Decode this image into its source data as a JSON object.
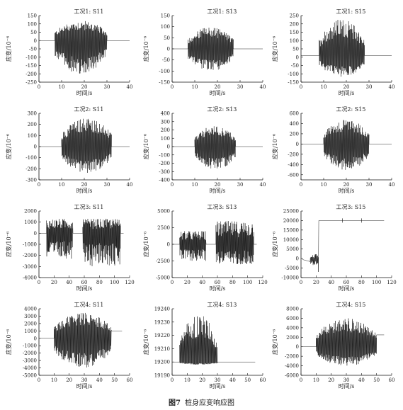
{
  "figure": {
    "label": "图7",
    "caption": "桩身应变响应图"
  },
  "chart_data": [
    {
      "type": "line",
      "title": "工况1: S11",
      "xlabel": "时间/s",
      "ylabel": "应变/10⁻⁶",
      "xlim": [
        0,
        40
      ],
      "ylim": [
        -250,
        150
      ],
      "xticks": [
        "0",
        "10",
        "20",
        "30",
        "40"
      ],
      "yticks": [
        "-250",
        "-200",
        "-150",
        "-100",
        "-50",
        "0",
        "50",
        "100",
        "150"
      ],
      "baseline": 0,
      "envelope": {
        "start": 7,
        "end": 30,
        "max": 120,
        "min": -200,
        "freq": 0.8
      }
    },
    {
      "type": "line",
      "title": "工况1: S13",
      "xlabel": "时间/s",
      "ylabel": "应变/10⁻⁶",
      "xlim": [
        0,
        40
      ],
      "ylim": [
        -150,
        150
      ],
      "xticks": [
        "0",
        "10",
        "20",
        "30",
        "40"
      ],
      "yticks": [
        "-150",
        "-100",
        "-50",
        "0",
        "50",
        "100",
        "150"
      ],
      "baseline": 0,
      "envelope": {
        "start": 7,
        "end": 27,
        "max": 100,
        "min": -100,
        "freq": 0.8
      }
    },
    {
      "type": "line",
      "title": "工况1: S15",
      "xlabel": "时间/s",
      "ylabel": "应变/10⁻⁶",
      "xlim": [
        0,
        40
      ],
      "ylim": [
        -150,
        250
      ],
      "xticks": [
        "0",
        "10",
        "20",
        "30",
        "40"
      ],
      "yticks": [
        "-150",
        "-100",
        "-50",
        "0",
        "50",
        "100",
        "150",
        "200",
        "250"
      ],
      "baseline": 10,
      "envelope": {
        "start": 8,
        "end": 28,
        "max": 230,
        "min": -120,
        "freq": 0.8
      }
    },
    {
      "type": "line",
      "title": "工况2: S11",
      "xlabel": "时间/s",
      "ylabel": "应变/10⁻⁶",
      "xlim": [
        0,
        40
      ],
      "ylim": [
        -300,
        300
      ],
      "xticks": [
        "0",
        "10",
        "20",
        "30",
        "40"
      ],
      "yticks": [
        "-300",
        "-200",
        "-100",
        "0",
        "100",
        "200",
        "300"
      ],
      "baseline": 0,
      "envelope": {
        "start": 10,
        "end": 32,
        "max": 260,
        "min": -240,
        "freq": 2.5
      }
    },
    {
      "type": "line",
      "title": "工况2: S13",
      "xlabel": "时间/s",
      "ylabel": "应变/10⁻⁶",
      "xlim": [
        0,
        40
      ],
      "ylim": [
        -400,
        400
      ],
      "xticks": [
        "0",
        "10",
        "20",
        "30",
        "40"
      ],
      "yticks": [
        "-400",
        "-300",
        "-200",
        "-100",
        "0",
        "100",
        "200",
        "300",
        "400"
      ],
      "baseline": 0,
      "envelope": {
        "start": 10,
        "end": 28,
        "max": 250,
        "min": -280,
        "freq": 2.5
      }
    },
    {
      "type": "line",
      "title": "工况2: S15",
      "xlabel": "时间/s",
      "ylabel": "应变/10⁻⁶",
      "xlim": [
        0,
        40
      ],
      "ylim": [
        -700,
        600
      ],
      "xticks": [
        "0",
        "10",
        "20",
        "30",
        "40"
      ],
      "yticks": [
        "-600",
        "-400",
        "-200",
        "0",
        "200",
        "400",
        "600"
      ],
      "baseline": 0,
      "envelope": {
        "start": 10,
        "end": 30,
        "max": 480,
        "min": -520,
        "freq": 2.5
      }
    },
    {
      "type": "line",
      "title": "工况3: S11",
      "xlabel": "时间/s",
      "ylabel": "应变/10⁻⁶",
      "xlim": [
        0,
        120
      ],
      "ylim": [
        -4000,
        2000
      ],
      "xticks": [
        "0",
        "20",
        "40",
        "60",
        "80",
        "100",
        "120"
      ],
      "yticks": [
        "-4000",
        "-3000",
        "-2000",
        "-1000",
        "0",
        "1000",
        "2000"
      ],
      "baseline": 0,
      "bursts": [
        {
          "start": 10,
          "end": 45,
          "max": 1300,
          "min": -2300
        },
        {
          "start": 58,
          "end": 108,
          "max": 1300,
          "min": -3000
        }
      ]
    },
    {
      "type": "line",
      "title": "工况3: S13",
      "xlabel": "时间/s",
      "ylabel": "应变/10⁻⁶",
      "xlim": [
        0,
        120
      ],
      "ylim": [
        -5000,
        5000
      ],
      "xticks": [
        "0",
        "20",
        "40",
        "60",
        "80",
        "100",
        "120"
      ],
      "yticks": [
        "-5000",
        "-2500",
        "0",
        "2500",
        "5000"
      ],
      "baseline": 0,
      "bursts": [
        {
          "start": 10,
          "end": 45,
          "max": 2000,
          "min": -2500
        },
        {
          "start": 58,
          "end": 108,
          "max": 3500,
          "min": -3000
        }
      ]
    },
    {
      "type": "line",
      "title": "工况3: S15",
      "xlabel": "时间/s",
      "ylabel": "应变/10⁻⁶",
      "xlim": [
        0,
        120
      ],
      "ylim": [
        -10000,
        25000
      ],
      "xticks": [
        "0",
        "20",
        "40",
        "60",
        "80",
        "100",
        "120"
      ],
      "yticks": [
        "-10000",
        "-5000",
        "0",
        "5000",
        "10000",
        "15000",
        "20000",
        "25000"
      ],
      "baseline": -500,
      "step": {
        "at": 23,
        "level": 20000,
        "end": 110
      }
    },
    {
      "type": "line",
      "title": "工况4: S11",
      "xlabel": "时间/s",
      "ylabel": "应变/10⁻⁶",
      "xlim": [
        0,
        60
      ],
      "ylim": [
        -5000,
        4000
      ],
      "xticks": [
        "0",
        "10",
        "20",
        "30",
        "40",
        "50",
        "60"
      ],
      "yticks": [
        "-5000",
        "-4000",
        "-3000",
        "-2000",
        "-1000",
        "0",
        "1000",
        "2000",
        "3000",
        "4000"
      ],
      "baseline": 0,
      "envelope": {
        "start": 10,
        "end": 48,
        "max": 3500,
        "min": -4000,
        "freq": 3
      },
      "tail": 1000,
      "tailEnd": 55
    },
    {
      "type": "line",
      "title": "工况4: S13",
      "xlabel": "时间/s",
      "ylabel": "应变/10⁻⁶",
      "xlim": [
        0,
        60
      ],
      "ylim": [
        19190,
        19240
      ],
      "xticks": [
        "0",
        "10",
        "20",
        "30",
        "40",
        "50",
        "60"
      ],
      "yticks": [
        "19190",
        "19200",
        "19210",
        "19220",
        "19230",
        "19240"
      ],
      "baseline": 19200,
      "envelope": {
        "start": 5,
        "end": 30,
        "max": 19236,
        "min": 19198,
        "freq": 3
      },
      "tailEnd": 55
    },
    {
      "type": "line",
      "title": "工况4: S15",
      "xlabel": "时间/s",
      "ylabel": "应变/10⁻⁶",
      "xlim": [
        0,
        60
      ],
      "ylim": [
        -6000,
        8000
      ],
      "xticks": [
        "0",
        "10",
        "20",
        "30",
        "40",
        "50",
        "60"
      ],
      "yticks": [
        "-6000",
        "-4000",
        "-2000",
        "0",
        "2000",
        "4000",
        "6000",
        "8000"
      ],
      "baseline": 0,
      "envelope": {
        "start": 10,
        "end": 50,
        "max": 6000,
        "min": -4000,
        "freq": 3
      },
      "tail": 2500,
      "tailEnd": 55
    }
  ]
}
